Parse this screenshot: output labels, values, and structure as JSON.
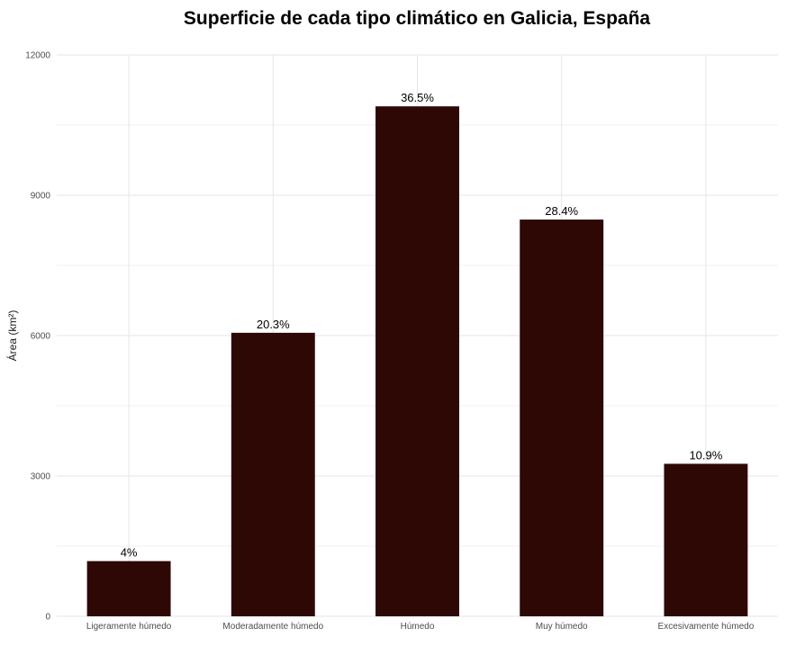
{
  "chart_data": {
    "type": "bar",
    "title": "Superficie de cada tipo climático en Galicia, España",
    "xlabel": "",
    "ylabel": "Área (km²)",
    "ylim": [
      0,
      12000
    ],
    "yticks": [
      0,
      3000,
      6000,
      9000,
      12000
    ],
    "grid": true,
    "bar_color": "#2d0805",
    "categories": [
      "Ligeramente húmedo",
      "Moderadamente húmedo",
      "Húmedo",
      "Muy húmedo",
      "Excesivamente húmedo"
    ],
    "values": [
      1180,
      6060,
      10900,
      8480,
      3260
    ],
    "labels": [
      "4%",
      "20.3%",
      "36.5%",
      "28.4%",
      "10.9%"
    ]
  }
}
